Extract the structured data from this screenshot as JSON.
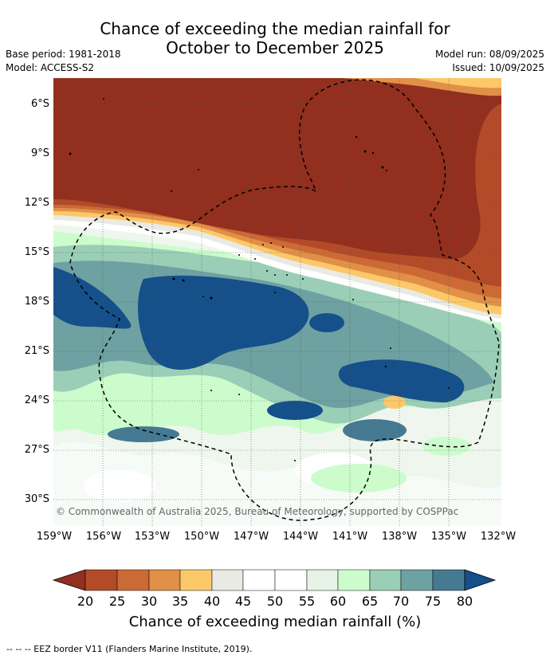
{
  "title_line1": "Chance of exceeding the median rainfall for",
  "title_line2": "October to December 2025",
  "base_period": "Base period: 1981-2018",
  "model": "Model: ACCESS-S2",
  "model_run": "Model run: 08/09/2025",
  "issued": "Issued: 10/09/2025",
  "copyright": "© Commonwealth of Australia 2025, Bureau of Meteorology, supported by COSPPac",
  "lon_labels": [
    "159°W",
    "156°W",
    "153°W",
    "150°W",
    "147°W",
    "144°W",
    "141°W",
    "138°W",
    "135°W",
    "132°W"
  ],
  "lat_labels": [
    "6°S",
    "9°S",
    "12°S",
    "15°S",
    "18°S",
    "21°S",
    "24°S",
    "27°S",
    "30°S"
  ],
  "colorbar": {
    "ticks": [
      "20",
      "25",
      "30",
      "35",
      "40",
      "45",
      "50",
      "55",
      "60",
      "65",
      "70",
      "75",
      "80"
    ],
    "colors": [
      "#922f1f",
      "#b34b28",
      "#cc6a35",
      "#e19048",
      "#fcc86a",
      "#eaeae4",
      "#ffffff",
      "#ffffff",
      "#e6f3e6",
      "#ccfccc",
      "#9bceb6",
      "#6ea1a1",
      "#467a92",
      "#15508a"
    ],
    "label": "Chance of exceeding median rainfall (%)"
  },
  "footer": "--  --  -- EEZ border V11 (Flanders Marine Institute, 2019)."
}
